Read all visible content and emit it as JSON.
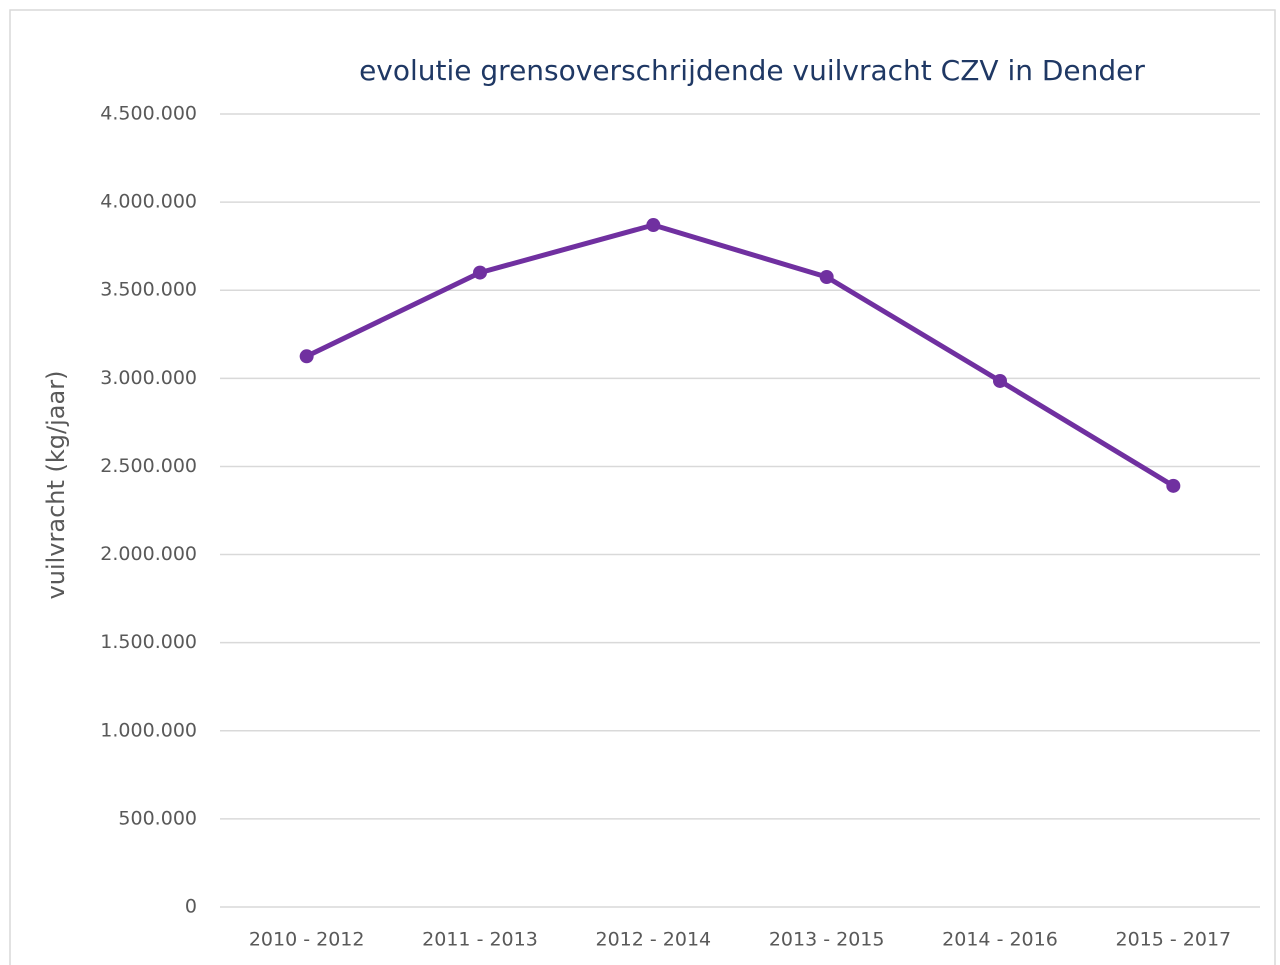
{
  "chart_data": {
    "type": "line",
    "title": "evolutie grensoverschrijdende  vuilvracht CZV  in  Dender",
    "y_label": "vuilvracht (kg/jaar)",
    "categories": [
      "2010 - 2012",
      "2011 - 2013",
      "2012 - 2014",
      "2013 - 2015",
      "2014 - 2016",
      "2015 - 2017"
    ],
    "series": [
      {
        "name": "vuilvracht",
        "color": "#7030a0",
        "values": [
          3125000,
          3600000,
          3870000,
          3575000,
          2985000,
          2390000
        ]
      }
    ],
    "ylim": [
      0,
      4500000
    ],
    "yticks": [
      0,
      {
        "value": 500000,
        "label": "500.000"
      },
      {
        "value": 1000000,
        "label": "1.000.000"
      },
      {
        "value": 1500000,
        "label": "1.500.000"
      },
      {
        "value": 2000000,
        "label": "2.000.000"
      },
      {
        "value": 2500000,
        "label": "2.500.000"
      },
      {
        "value": 3000000,
        "label": "3.000.000"
      },
      {
        "value": 3500000,
        "label": "3.500.000"
      },
      {
        "value": 4000000,
        "label": "4.000.000"
      },
      {
        "value": 4500000,
        "label": "4.500.000"
      }
    ],
    "grid": true
  }
}
